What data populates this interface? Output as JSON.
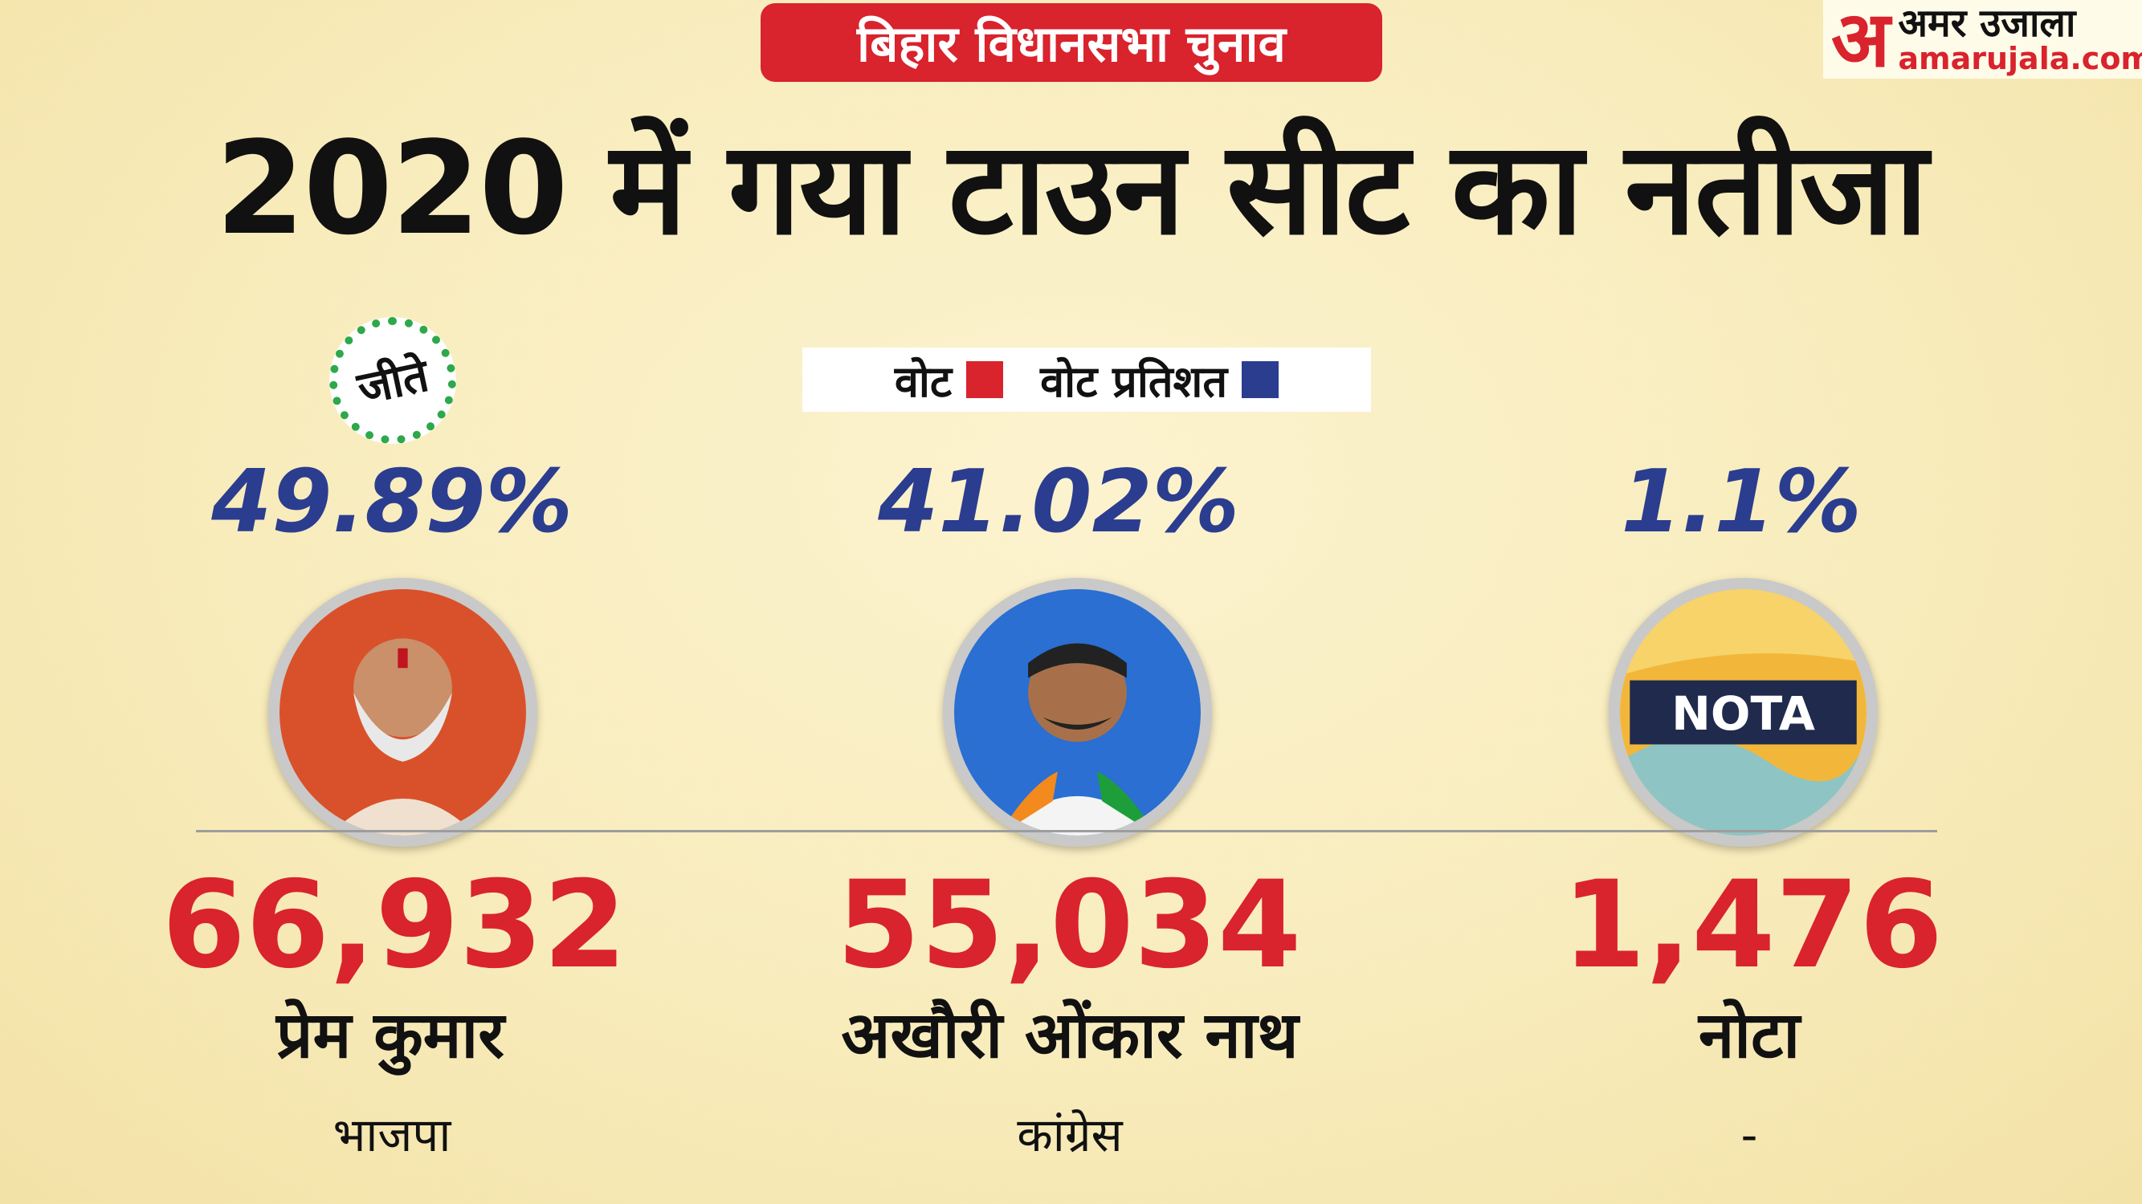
{
  "badge": "बिहार विधानसभा चुनाव",
  "brand": {
    "mark": "अ",
    "name": "अमर उजाला",
    "domain": "amarujala.com"
  },
  "headline": "2020 में गया टाउन सीट का नतीजा",
  "legend": {
    "votes_label": "वोट",
    "votes_color": "#d9232d",
    "percent_label": "वोट प्रतिशत",
    "percent_color": "#2b3d8f"
  },
  "winner_badge": "जीते",
  "candidates": [
    {
      "percent": "49.89%",
      "votes": "66,932",
      "name": "प्रेम कुमार",
      "party": "भाजपा",
      "photo": "candidate-photo"
    },
    {
      "percent": "41.02%",
      "votes": "55,034",
      "name": "अखौरी ओंकार नाथ",
      "party": "कांग्रेस",
      "photo": "candidate-photo"
    },
    {
      "percent": "1.1%",
      "votes": "1,476",
      "name": "नोटा",
      "party": "-",
      "photo": "nota-logo",
      "logo_text": "NOTA"
    }
  ]
}
